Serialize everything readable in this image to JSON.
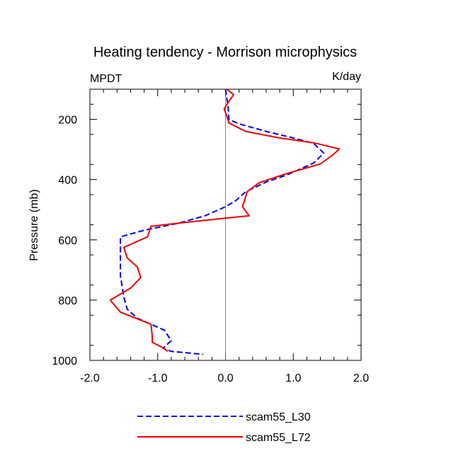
{
  "chart_data": {
    "type": "line",
    "title": "Heating tendency - Morrison microphysics",
    "left_label": "MPDT",
    "right_label": "K/day",
    "xlabel": "",
    "ylabel": "Pressure (mb)",
    "xlim": [
      -2.0,
      2.0
    ],
    "ylim": [
      100,
      1000
    ],
    "y_reversed": true,
    "x_ticks": [
      "-2.0",
      "-1.0",
      "0.0",
      "1.0",
      "2.0"
    ],
    "x_tick_values": [
      -2.0,
      -1.0,
      0.0,
      1.0,
      2.0
    ],
    "y_ticks": [
      "200",
      "400",
      "600",
      "800",
      "1000"
    ],
    "y_tick_values": [
      200,
      400,
      600,
      800,
      1000
    ],
    "zero_line": 0.0,
    "series": [
      {
        "name": "scam55_L30",
        "color": "#0000ee",
        "style": "dashed",
        "points": [
          [
            0.0,
            100
          ],
          [
            0.02,
            130
          ],
          [
            0.04,
            160
          ],
          [
            0.05,
            200
          ],
          [
            0.2,
            215
          ],
          [
            0.6,
            240
          ],
          [
            1.0,
            262
          ],
          [
            1.3,
            280
          ],
          [
            1.45,
            312
          ],
          [
            1.3,
            345
          ],
          [
            0.9,
            385
          ],
          [
            0.6,
            408
          ],
          [
            0.3,
            440
          ],
          [
            0.15,
            470
          ],
          [
            0.0,
            490
          ],
          [
            -0.3,
            520
          ],
          [
            -0.7,
            545
          ],
          [
            -1.2,
            568
          ],
          [
            -1.55,
            590
          ],
          [
            -1.55,
            650
          ],
          [
            -1.55,
            720
          ],
          [
            -1.5,
            790
          ],
          [
            -1.45,
            830
          ],
          [
            -1.3,
            860
          ],
          [
            -0.9,
            900
          ],
          [
            -0.8,
            935
          ],
          [
            -0.9,
            955
          ],
          [
            -0.92,
            960
          ],
          [
            -0.8,
            970
          ],
          [
            -0.33,
            980
          ]
        ]
      },
      {
        "name": "scam55_L72",
        "color": "#ee0000",
        "style": "solid",
        "points": [
          [
            0.02,
            100
          ],
          [
            0.12,
            118
          ],
          [
            0.05,
            140
          ],
          [
            -0.02,
            165
          ],
          [
            0.02,
            190
          ],
          [
            0.05,
            212
          ],
          [
            0.3,
            240
          ],
          [
            0.8,
            262
          ],
          [
            1.3,
            278
          ],
          [
            1.68,
            298
          ],
          [
            1.6,
            315
          ],
          [
            1.4,
            348
          ],
          [
            0.9,
            380
          ],
          [
            0.5,
            410
          ],
          [
            0.32,
            440
          ],
          [
            0.28,
            470
          ],
          [
            0.25,
            490
          ],
          [
            0.35,
            520
          ],
          [
            0.0,
            528
          ],
          [
            -0.5,
            540
          ],
          [
            -1.1,
            555
          ],
          [
            -1.15,
            590
          ],
          [
            -1.5,
            625
          ],
          [
            -1.45,
            660
          ],
          [
            -1.3,
            690
          ],
          [
            -1.25,
            725
          ],
          [
            -1.4,
            760
          ],
          [
            -1.7,
            800
          ],
          [
            -1.55,
            840
          ],
          [
            -1.1,
            880
          ],
          [
            -1.08,
            920
          ],
          [
            -1.08,
            940
          ],
          [
            -0.95,
            955
          ],
          [
            -0.85,
            970
          ]
        ]
      }
    ],
    "legend": [
      {
        "label": "scam55_L30",
        "color": "#0000ee",
        "style": "dashed"
      },
      {
        "label": "scam55_L72",
        "color": "#ee0000",
        "style": "solid"
      }
    ],
    "legend_position": "bottom-center"
  }
}
